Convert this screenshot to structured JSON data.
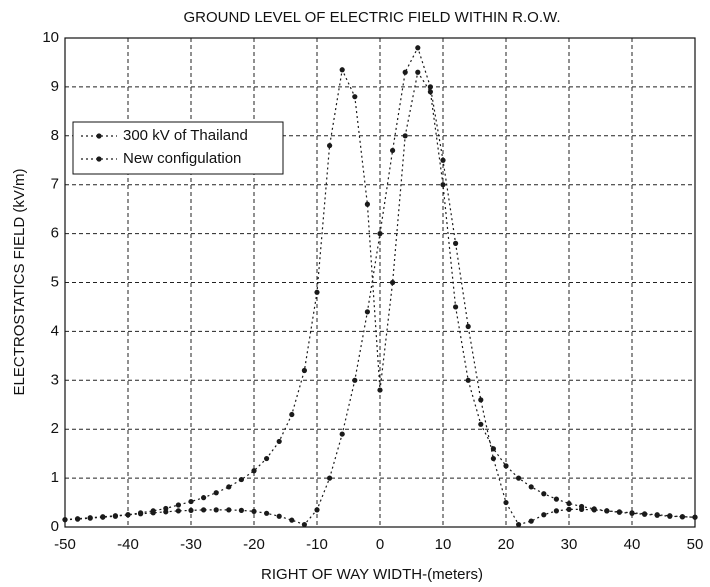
{
  "chart_data": {
    "type": "line",
    "title": "GROUND LEVEL OF ELECTRIC FIELD WITHIN R.O.W.",
    "x_label": "RIGHT OF WAY WIDTH-(meters)",
    "y_label": "ELECTROSTATICS FIELD (kV/m)",
    "x": [
      -50,
      -48,
      -46,
      -44,
      -42,
      -40,
      -38,
      -36,
      -34,
      -32,
      -30,
      -28,
      -26,
      -24,
      -22,
      -20,
      -18,
      -16,
      -14,
      -12,
      -10,
      -8,
      -6,
      -4,
      -2,
      0,
      2,
      4,
      6,
      8,
      10,
      12,
      14,
      16,
      18,
      20,
      22,
      24,
      26,
      28,
      30,
      32,
      34,
      36,
      38,
      40,
      42,
      44,
      46,
      48,
      50
    ],
    "series": [
      {
        "name": "300 kV of Thailand",
        "color": "#1a1a1a",
        "values": [
          0.15,
          0.16,
          0.18,
          0.2,
          0.22,
          0.25,
          0.29,
          0.33,
          0.38,
          0.45,
          0.52,
          0.6,
          0.7,
          0.82,
          0.97,
          1.15,
          1.4,
          1.75,
          2.3,
          3.2,
          4.8,
          7.8,
          9.35,
          8.8,
          6.6,
          2.8,
          5.0,
          8.0,
          9.3,
          8.9,
          7.0,
          4.5,
          3.0,
          2.1,
          1.6,
          1.25,
          1.0,
          0.82,
          0.68,
          0.57,
          0.48,
          0.42,
          0.37,
          0.33,
          0.3,
          0.28,
          0.26,
          0.24,
          0.22,
          0.21,
          0.2
        ]
      },
      {
        "name": "New configulation",
        "color": "#1a1a1a",
        "values": [
          0.15,
          0.17,
          0.19,
          0.21,
          0.23,
          0.25,
          0.27,
          0.29,
          0.31,
          0.33,
          0.34,
          0.35,
          0.35,
          0.35,
          0.34,
          0.32,
          0.28,
          0.22,
          0.14,
          0.05,
          0.35,
          1.0,
          1.9,
          3.0,
          4.4,
          6.0,
          7.7,
          9.3,
          9.8,
          9.0,
          7.5,
          5.8,
          4.1,
          2.6,
          1.4,
          0.5,
          0.05,
          0.12,
          0.25,
          0.33,
          0.36,
          0.36,
          0.35,
          0.33,
          0.31,
          0.29,
          0.27,
          0.25,
          0.23,
          0.21,
          0.2
        ]
      }
    ],
    "xlim": [
      -50,
      50
    ],
    "xticks": [
      -50,
      -40,
      -30,
      -20,
      -10,
      0,
      10,
      20,
      30,
      40,
      50
    ],
    "ylim": [
      0,
      10
    ],
    "yticks": [
      0,
      1,
      2,
      3,
      4,
      5,
      6,
      7,
      8,
      9,
      10
    ],
    "grid": true,
    "legend": "upper left"
  }
}
